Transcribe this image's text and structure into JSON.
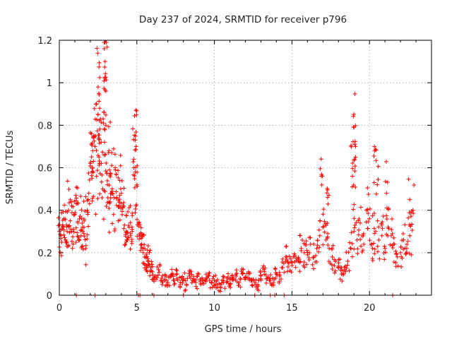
{
  "chart_data": {
    "type": "scatter",
    "title": "Day 237 of 2024, SRMTID for receiver p796",
    "xlabel": "GPS time / hours",
    "ylabel": "SRMTID / TECUs",
    "xlim": [
      0,
      24
    ],
    "ylim": [
      0,
      1.2
    ],
    "xticks": [
      0,
      5,
      10,
      15,
      20
    ],
    "xtick_labels": [
      "0",
      "5",
      "10",
      "15",
      "20"
    ],
    "yticks": [
      0,
      0.2,
      0.4,
      0.6,
      0.8,
      1.0,
      1.2
    ],
    "ytick_labels": [
      "0",
      "0.2",
      "0.4",
      "0.6",
      "0.8",
      "1",
      "1.2"
    ],
    "grid": true,
    "marker": "+",
    "series": [
      {
        "name": "SRMTID",
        "color": "#ff0000",
        "x": [
          0.0,
          0.1,
          0.2,
          0.3,
          0.4,
          0.5,
          0.6,
          0.7,
          0.8,
          0.9,
          1.0,
          1.1,
          1.2,
          1.3,
          1.4,
          1.5,
          1.6,
          1.7,
          1.8,
          1.9,
          2.0,
          2.1,
          2.2,
          2.3,
          2.4,
          2.5,
          2.6,
          2.7,
          2.8,
          2.9,
          3.0,
          3.1,
          3.2,
          3.3,
          3.4,
          3.5,
          3.6,
          3.7,
          3.8,
          3.9,
          4.0,
          4.1,
          4.2,
          4.3,
          4.4,
          4.5,
          4.6,
          4.7,
          4.8,
          4.9,
          5.0,
          5.1,
          5.2,
          5.3,
          5.4,
          5.5,
          5.6,
          5.7,
          5.8,
          5.9,
          6.0,
          6.2,
          6.4,
          6.6,
          6.8,
          7.0,
          7.2,
          7.4,
          7.6,
          7.8,
          8.0,
          8.2,
          8.4,
          8.6,
          8.8,
          9.0,
          9.2,
          9.4,
          9.6,
          9.8,
          10.0,
          10.2,
          10.4,
          10.6,
          10.8,
          11.0,
          11.2,
          11.4,
          11.6,
          11.8,
          12.0,
          12.2,
          12.4,
          12.6,
          12.8,
          13.0,
          13.2,
          13.4,
          13.6,
          13.8,
          14.0,
          14.2,
          14.4,
          14.6,
          14.8,
          15.0,
          15.2,
          15.4,
          15.6,
          15.8,
          16.0,
          16.2,
          16.4,
          16.6,
          16.8,
          17.0,
          17.2,
          17.4,
          17.6,
          17.8,
          18.0,
          18.2,
          18.4,
          18.6,
          18.8,
          19.0,
          19.2,
          19.4,
          19.6,
          19.8,
          20.0,
          20.2,
          20.4,
          20.6,
          20.8,
          21.0,
          21.2,
          21.4,
          21.6,
          21.8,
          22.0,
          22.2,
          22.4,
          22.6,
          22.8,
          2.9,
          2.95,
          2.5,
          2.55,
          3.0,
          3.2,
          2.6,
          2.2,
          4.9,
          4.95,
          19.0,
          19.05,
          19.1,
          16.9,
          17.3,
          18.9,
          20.3,
          20.5,
          21.1,
          22.6
        ],
        "values": [
          0.3,
          0.28,
          0.33,
          0.36,
          0.26,
          0.3,
          0.4,
          0.35,
          0.42,
          0.31,
          0.38,
          0.43,
          0.34,
          0.36,
          0.28,
          0.32,
          0.35,
          0.22,
          0.4,
          0.48,
          0.62,
          0.58,
          0.74,
          0.7,
          0.56,
          0.85,
          0.62,
          0.72,
          0.5,
          0.66,
          0.8,
          0.52,
          0.44,
          0.57,
          0.49,
          0.38,
          0.6,
          0.46,
          0.35,
          0.54,
          0.48,
          0.42,
          0.33,
          0.3,
          0.26,
          0.32,
          0.28,
          0.3,
          0.6,
          0.58,
          0.52,
          0.34,
          0.28,
          0.24,
          0.22,
          0.18,
          0.14,
          0.16,
          0.2,
          0.13,
          0.11,
          0.09,
          0.12,
          0.08,
          0.07,
          0.06,
          0.09,
          0.07,
          0.1,
          0.06,
          0.08,
          0.05,
          0.09,
          0.07,
          0.06,
          0.1,
          0.08,
          0.07,
          0.09,
          0.06,
          0.07,
          0.05,
          0.04,
          0.06,
          0.08,
          0.05,
          0.07,
          0.09,
          0.06,
          0.1,
          0.08,
          0.11,
          0.07,
          0.06,
          0.05,
          0.09,
          0.12,
          0.08,
          0.07,
          0.06,
          0.1,
          0.09,
          0.13,
          0.18,
          0.15,
          0.14,
          0.18,
          0.16,
          0.22,
          0.2,
          0.19,
          0.24,
          0.18,
          0.22,
          0.28,
          0.32,
          0.26,
          0.22,
          0.18,
          0.16,
          0.13,
          0.1,
          0.12,
          0.16,
          0.22,
          0.3,
          0.26,
          0.34,
          0.28,
          0.4,
          0.36,
          0.22,
          0.3,
          0.26,
          0.28,
          0.22,
          0.32,
          0.28,
          0.24,
          0.18,
          0.2,
          0.26,
          0.22,
          0.28,
          0.4,
          1.16,
          1.1,
          0.98,
          0.95,
          0.96,
          0.68,
          0.88,
          0.63,
          0.73,
          0.7,
          0.79,
          0.71,
          0.65,
          0.56,
          0.46,
          0.56,
          0.53,
          0.52,
          0.48,
          0.45
        ]
      }
    ],
    "zero_line_marks_x": [
      1.1,
      2.3,
      5.1,
      5.2,
      6.1,
      8.0,
      12.6,
      13.6,
      13.9,
      14.5,
      21.5
    ]
  }
}
